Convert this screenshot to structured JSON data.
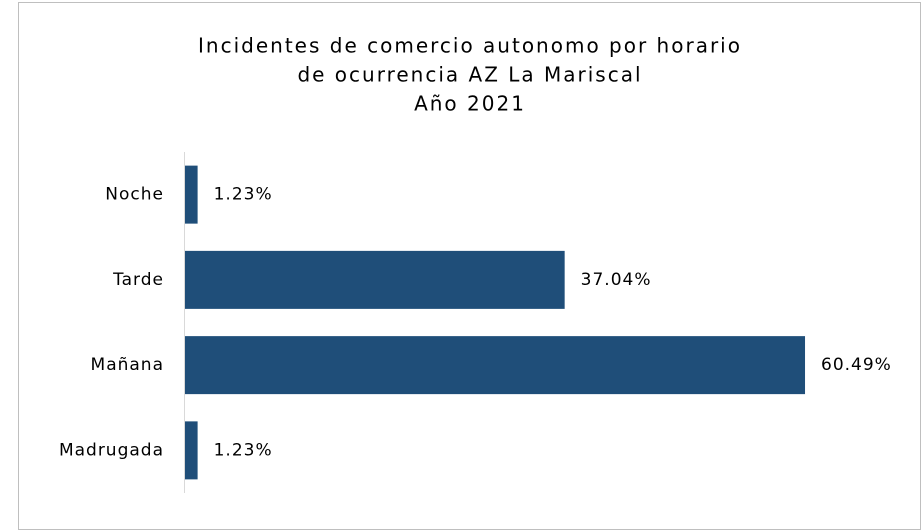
{
  "chart_data": {
    "type": "barh",
    "title": [
      "Incidentes de comercio autonomo por horario",
      "de ocurrencia AZ La Mariscal",
      "Año 2021"
    ],
    "categories": [
      "Noche",
      "Tarde",
      "Mañana",
      "Madrugada"
    ],
    "values": [
      1.23,
      37.04,
      60.49,
      1.23
    ],
    "value_labels": [
      "1.23%",
      "37.04%",
      "60.49%",
      "1.23%"
    ],
    "color": "#1f4e79"
  }
}
